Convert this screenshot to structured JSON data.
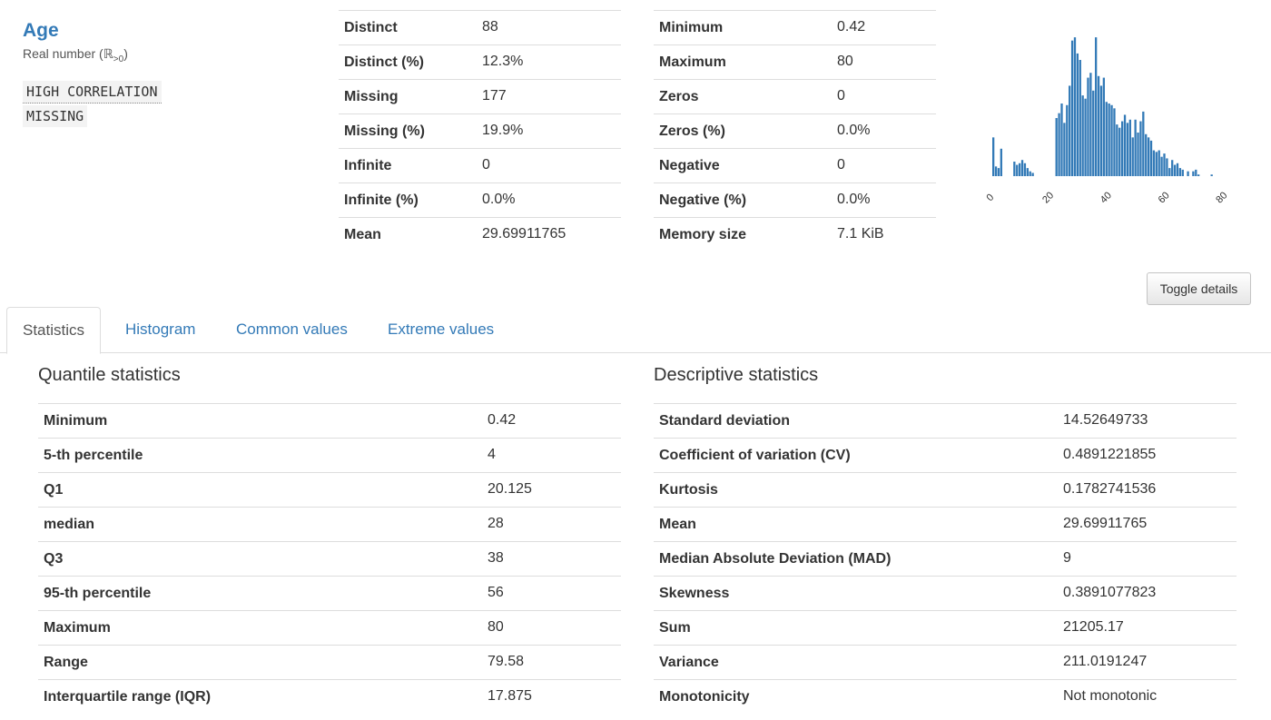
{
  "variable": {
    "name": "Age",
    "type_label": "Real number (ℝ",
    "type_sub": ">0",
    "type_close": ")",
    "badges": [
      "HIGH CORRELATION",
      "MISSING"
    ]
  },
  "overview_left": [
    {
      "label": "Distinct",
      "value": "88"
    },
    {
      "label": "Distinct (%)",
      "value": "12.3%"
    },
    {
      "label": "Missing",
      "value": "177"
    },
    {
      "label": "Missing (%)",
      "value": "19.9%"
    },
    {
      "label": "Infinite",
      "value": "0"
    },
    {
      "label": "Infinite (%)",
      "value": "0.0%"
    },
    {
      "label": "Mean",
      "value": "29.69911765"
    }
  ],
  "overview_right": [
    {
      "label": "Minimum",
      "value": "0.42"
    },
    {
      "label": "Maximum",
      "value": "80"
    },
    {
      "label": "Zeros",
      "value": "0"
    },
    {
      "label": "Zeros (%)",
      "value": "0.0%"
    },
    {
      "label": "Negative",
      "value": "0"
    },
    {
      "label": "Negative (%)",
      "value": "0.0%"
    },
    {
      "label": "Memory size",
      "value": "7.1 KiB"
    }
  ],
  "chart_data": {
    "type": "bar",
    "x_ticks": [
      "0",
      "20",
      "40",
      "60",
      "80"
    ],
    "x_range": [
      0,
      80
    ],
    "bins": 88,
    "values": [
      24,
      6,
      5,
      17,
      0,
      0,
      0,
      0,
      9,
      7,
      8,
      10,
      8,
      5,
      3,
      2,
      0,
      0,
      0,
      0,
      0,
      0,
      0,
      0,
      36,
      39,
      45,
      33,
      44,
      56,
      84,
      86,
      76,
      72,
      50,
      48,
      61,
      64,
      53,
      86,
      62,
      56,
      61,
      46,
      45,
      44,
      42,
      32,
      30,
      34,
      38,
      33,
      35,
      24,
      35,
      27,
      34,
      40,
      26,
      24,
      22,
      16,
      15,
      16,
      12,
      14,
      11,
      5,
      10,
      7,
      8,
      5,
      4,
      0,
      3,
      0,
      3,
      4,
      1,
      0,
      0,
      0,
      0,
      1,
      0,
      0,
      0,
      0
    ],
    "ylim": [
      0,
      90
    ],
    "bar_color": "#337ab7"
  },
  "toggle_label": "Toggle details",
  "tabs": [
    "Statistics",
    "Histogram",
    "Common values",
    "Extreme values"
  ],
  "quantile": {
    "title": "Quantile statistics",
    "rows": [
      {
        "label": "Minimum",
        "value": "0.42"
      },
      {
        "label": "5-th percentile",
        "value": "4"
      },
      {
        "label": "Q1",
        "value": "20.125"
      },
      {
        "label": "median",
        "value": "28"
      },
      {
        "label": "Q3",
        "value": "38"
      },
      {
        "label": "95-th percentile",
        "value": "56"
      },
      {
        "label": "Maximum",
        "value": "80"
      },
      {
        "label": "Range",
        "value": "79.58"
      },
      {
        "label": "Interquartile range (IQR)",
        "value": "17.875"
      }
    ]
  },
  "descriptive": {
    "title": "Descriptive statistics",
    "rows": [
      {
        "label": "Standard deviation",
        "value": "14.52649733"
      },
      {
        "label": "Coefficient of variation (CV)",
        "value": "0.4891221855"
      },
      {
        "label": "Kurtosis",
        "value": "0.1782741536"
      },
      {
        "label": "Mean",
        "value": "29.69911765"
      },
      {
        "label": "Median Absolute Deviation (MAD)",
        "value": "9"
      },
      {
        "label": "Skewness",
        "value": "0.3891077823"
      },
      {
        "label": "Sum",
        "value": "21205.17"
      },
      {
        "label": "Variance",
        "value": "211.0191247"
      },
      {
        "label": "Monotonicity",
        "value": "Not monotonic"
      }
    ]
  }
}
